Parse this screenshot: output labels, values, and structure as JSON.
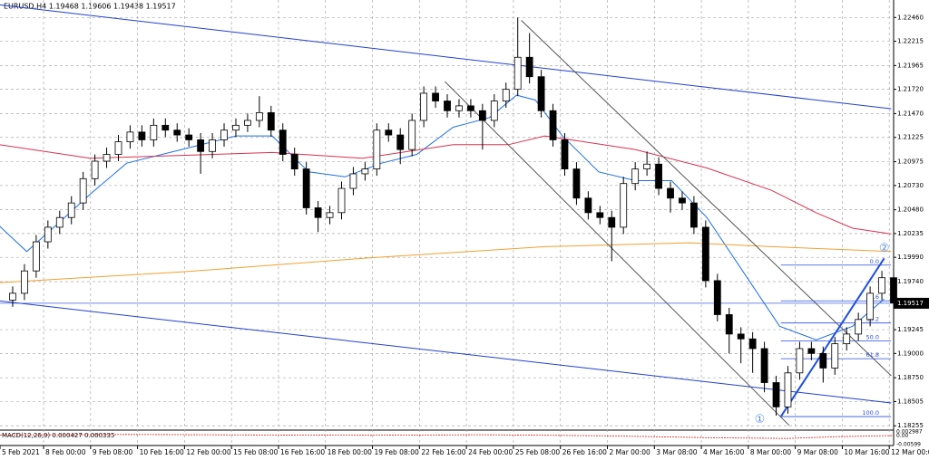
{
  "chart_data": {
    "type": "candlestick",
    "header": "EURUSD,H4  1.19468 1.19606 1.19438 1.19517",
    "indicator_label": "MACD(12,26,9) 0.000427 0.000335",
    "open": [
      1.1955,
      1.1962,
      1.1985,
      1.2015,
      1.203,
      1.204,
      1.2055,
      1.208,
      1.2098,
      1.2105,
      1.2118,
      1.2128,
      1.212,
      1.2135,
      1.213,
      1.2125,
      1.212,
      1.2108,
      1.212,
      1.213,
      1.2135,
      1.214,
      1.2148,
      1.213,
      1.2105,
      1.209,
      1.205,
      1.204,
      1.2045,
      1.207,
      1.2085,
      1.209,
      1.213,
      1.2125,
      1.211,
      1.214,
      1.2168,
      1.216,
      1.215,
      1.2155,
      1.215,
      1.214,
      1.216,
      1.2172,
      1.2205,
      1.2185,
      1.215,
      1.212,
      1.209,
      1.206,
      1.2045,
      1.204,
      1.203,
      1.2075,
      1.209,
      1.2095,
      1.207,
      1.206,
      1.2055,
      1.203,
      1.1975,
      1.194,
      1.192,
      1.1915,
      1.1905,
      1.187,
      1.1845,
      1.188,
      1.1905,
      1.19,
      1.1885,
      1.191,
      1.192,
      1.1935,
      1.1962,
      1.1978
    ],
    "high": [
      1.1969,
      1.1992,
      1.2022,
      1.2037,
      1.2047,
      1.2062,
      1.2087,
      1.2105,
      1.2112,
      1.2125,
      1.2135,
      1.2135,
      1.2142,
      1.2142,
      1.2137,
      1.2132,
      1.2127,
      1.2127,
      1.2137,
      1.2142,
      1.2147,
      1.2165,
      1.2155,
      1.2137,
      1.2112,
      1.2097,
      1.2057,
      1.2052,
      1.2077,
      1.2092,
      1.2097,
      1.2137,
      1.2137,
      1.2132,
      1.2147,
      1.2175,
      1.2175,
      1.2167,
      1.2162,
      1.2162,
      1.2157,
      1.2167,
      1.2179,
      1.2246,
      1.223,
      1.2192,
      1.2157,
      1.2127,
      1.2097,
      1.2067,
      1.2052,
      1.2047,
      1.2082,
      1.2097,
      1.2108,
      1.2102,
      1.2077,
      1.2067,
      1.2062,
      1.2037,
      1.1982,
      1.1947,
      1.1927,
      1.1922,
      1.1912,
      1.1877,
      1.1887,
      1.1912,
      1.1912,
      1.1907,
      1.1917,
      1.1927,
      1.1942,
      1.1969,
      1.1985,
      1.1985
    ],
    "low": [
      1.1948,
      1.1955,
      1.1978,
      1.2008,
      1.2023,
      1.2033,
      1.2048,
      1.2073,
      1.2091,
      1.2098,
      1.2111,
      1.2113,
      1.2113,
      1.2123,
      1.2118,
      1.2113,
      1.2085,
      1.2101,
      1.2113,
      1.2123,
      1.2128,
      1.2133,
      1.2123,
      1.2098,
      1.2083,
      1.2043,
      1.2025,
      1.2033,
      1.2038,
      1.2063,
      1.2078,
      1.2083,
      1.2118,
      1.2095,
      1.2103,
      1.2133,
      1.2153,
      1.2143,
      1.2143,
      1.2143,
      1.211,
      1.2133,
      1.2153,
      1.2165,
      1.2178,
      1.2143,
      1.2113,
      1.2083,
      1.2053,
      1.2038,
      1.2033,
      1.1995,
      1.2023,
      1.2068,
      1.2083,
      1.2063,
      1.2045,
      1.2048,
      1.2023,
      1.1968,
      1.1933,
      1.19,
      1.189,
      1.188,
      1.186,
      1.1836,
      1.1838,
      1.1873,
      1.1893,
      1.187,
      1.1878,
      1.1903,
      1.1913,
      1.1928,
      1.1955,
      1.1945
    ],
    "close": [
      1.1962,
      1.1985,
      1.2015,
      1.203,
      1.204,
      1.2055,
      1.208,
      1.2098,
      1.2105,
      1.2118,
      1.2128,
      1.212,
      1.2135,
      1.213,
      1.2125,
      1.212,
      1.2108,
      1.212,
      1.213,
      1.2135,
      1.214,
      1.2148,
      1.213,
      1.2105,
      1.209,
      1.205,
      1.204,
      1.2045,
      1.207,
      1.2085,
      1.209,
      1.213,
      1.2125,
      1.211,
      1.214,
      1.2168,
      1.216,
      1.215,
      1.2155,
      1.215,
      1.214,
      1.216,
      1.2172,
      1.2205,
      1.2185,
      1.215,
      1.212,
      1.209,
      1.206,
      1.2045,
      1.204,
      1.203,
      1.2075,
      1.209,
      1.2095,
      1.207,
      1.206,
      1.2055,
      1.203,
      1.1975,
      1.194,
      1.192,
      1.1915,
      1.1905,
      1.187,
      1.1845,
      1.188,
      1.1905,
      1.19,
      1.1885,
      1.191,
      1.192,
      1.1935,
      1.1962,
      1.1978,
      1.1952
    ],
    "xlim": [
      -1.08,
      75
    ],
    "ylim": [
      1.1822,
      1.2264
    ],
    "yticks": [
      {
        "value": 1.2246,
        "label": "1.22460"
      },
      {
        "value": 1.22215,
        "label": "1.22215"
      },
      {
        "value": 1.21965,
        "label": "1.21965"
      },
      {
        "value": 1.2172,
        "label": "1.21720"
      },
      {
        "value": 1.2147,
        "label": "1.21470"
      },
      {
        "value": 1.21225,
        "label": "1.21225"
      },
      {
        "value": 1.20975,
        "label": "1.20975"
      },
      {
        "value": 1.2073,
        "label": "1.20730"
      },
      {
        "value": 1.2048,
        "label": "1.20480"
      },
      {
        "value": 1.20235,
        "label": "1.20235"
      },
      {
        "value": 1.1999,
        "label": "1.19990"
      },
      {
        "value": 1.1974,
        "label": "1.19740"
      },
      {
        "value": 1.19245,
        "label": "1.19245"
      },
      {
        "value": 1.19,
        "label": "1.19000"
      },
      {
        "value": 1.1875,
        "label": "1.18750"
      },
      {
        "value": 1.18505,
        "label": "1.18505"
      },
      {
        "value": 1.18255,
        "label": "1.18255"
      }
    ],
    "xticks": [
      {
        "value": -1.08,
        "label": "5 Feb 2021"
      },
      {
        "value": 2.63,
        "label": "8 Feb 00:00"
      },
      {
        "value": 6.63,
        "label": "9 Feb 08:00"
      },
      {
        "value": 10.63,
        "label": "10 Feb 16:00"
      },
      {
        "value": 14.63,
        "label": "12 Feb 00:00"
      },
      {
        "value": 18.63,
        "label": "15 Feb 08:00"
      },
      {
        "value": 22.63,
        "label": "16 Feb 16:00"
      },
      {
        "value": 26.63,
        "label": "18 Feb 00:00"
      },
      {
        "value": 30.63,
        "label": "19 Feb 08:00"
      },
      {
        "value": 34.63,
        "label": "22 Feb 16:00"
      },
      {
        "value": 38.63,
        "label": "24 Feb 00:00"
      },
      {
        "value": 42.63,
        "label": "25 Feb 08:00"
      },
      {
        "value": 46.63,
        "label": "26 Feb 16:00"
      },
      {
        "value": 50.63,
        "label": "2 Mar 00:00"
      },
      {
        "value": 54.63,
        "label": "3 Mar 08:00"
      },
      {
        "value": 58.63,
        "label": "4 Mar 16:00"
      },
      {
        "value": 62.63,
        "label": "8 Mar 00:00"
      },
      {
        "value": 66.63,
        "label": "9 Mar 08:00"
      },
      {
        "value": 70.63,
        "label": "10 Mar 16:00"
      },
      {
        "value": 74.63,
        "label": "12 Mar 00:00"
      }
    ],
    "grid": true,
    "bull_color": "#ffffff",
    "bear_color": "#000000",
    "current_price": 1.19517,
    "lines": [
      {
        "color": "#1e6fe8",
        "x": [
          -1.1,
          1.2,
          3.6,
          6.6,
          9.7,
          14.4,
          19,
          22.1,
          25.2,
          28.3,
          31.4,
          34.4,
          37.5,
          40.6,
          42.9,
          44.5,
          46.8,
          49.9,
          53,
          56.1,
          59.1,
          62.2,
          65.3,
          68.4,
          71.5,
          74.2
        ],
        "values": [
          1.2031,
          1.2005,
          1.2031,
          1.2064,
          1.2096,
          1.211,
          1.2124,
          1.2124,
          1.2087,
          1.2082,
          1.2096,
          1.2105,
          1.2133,
          1.2143,
          1.2166,
          1.2161,
          1.2124,
          1.2087,
          1.2078,
          1.2078,
          1.204,
          1.1984,
          1.1928,
          1.1914,
          1.1928,
          1.1956
        ]
      },
      {
        "color": "#d9304f",
        "x": [
          -1.1,
          6.6,
          14.4,
          22.1,
          29.8,
          37.5,
          42.2,
          45.3,
          53,
          59.1,
          64.6,
          68.4,
          71.5,
          74.8
        ],
        "values": [
          1.2115,
          1.2101,
          1.2104,
          1.2107,
          1.2101,
          1.2115,
          1.2115,
          1.2124,
          1.211,
          1.2091,
          1.2068,
          1.2045,
          1.2029,
          1.2023
        ]
      },
      {
        "color": "#f0a030",
        "x": [
          -1.1,
          14.4,
          29.8,
          45.3,
          57.6,
          64.6,
          74.8
        ],
        "values": [
          1.1973,
          1.1984,
          1.1998,
          1.201,
          1.2014,
          1.201,
          1.2005
        ]
      },
      {
        "color": "#2040d0",
        "x": [
          -1.08,
          74.8
        ],
        "values": [
          1.2259,
          1.2152
        ]
      },
      {
        "color": "#2040d0",
        "x": [
          -1.08,
          74.8
        ],
        "values": [
          1.1954,
          1.1849
        ]
      },
      {
        "color": "#555555",
        "x": [
          43.3,
          74.8
        ],
        "values": [
          1.2243,
          1.1877
        ]
      },
      {
        "color": "#555555",
        "x": [
          36.8,
          66.1
        ],
        "values": [
          1.218,
          1.1826
        ]
      },
      {
        "color": "#1e4fe0",
        "x": [
          65.4,
          74.2
        ],
        "values": [
          1.1835,
          1.1998
        ]
      }
    ],
    "fib": {
      "high": 1.1991,
      "low": 1.1835,
      "start": 65.4,
      "color": "#2a4fd6",
      "levels": [
        {
          "value": 0,
          "label": "0.0"
        },
        23.6,
        38.2,
        {
          "value": 50,
          "label": "50.0"
        },
        61.8,
        {
          "value": 100,
          "label": "100.0"
        }
      ]
    },
    "wave_labels": [
      {
        "text": "①",
        "x": 63.6,
        "y": 1.1832
      },
      {
        "text": "②",
        "x": 74.2,
        "y": 1.2008
      }
    ],
    "macd": {
      "ylim": [
        -0.00599,
        0.002987
      ],
      "color": "#d92020",
      "x": [
        -1.08,
        10,
        20,
        30,
        40,
        50,
        60,
        66,
        70,
        75
      ],
      "values": [
        0.0008,
        0.0012,
        0.0009,
        0.0006,
        0.001,
        0.0003,
        -0.0012,
        -0.0016,
        -0.0004,
        0.0004
      ],
      "ticks": [
        0.002987,
        {
          "value": 0,
          "label": "0.00"
        },
        -0.00599
      ]
    }
  }
}
